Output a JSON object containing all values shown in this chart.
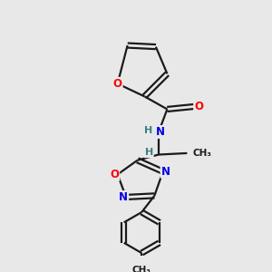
{
  "background_color": "#e8e8e8",
  "bond_color": "#1a1a1a",
  "atom_colors": {
    "O": "#ff0000",
    "N": "#0000ee",
    "H": "#3a8080",
    "C": "#1a1a1a"
  },
  "bond_lw": 1.6,
  "double_sep": 0.09
}
